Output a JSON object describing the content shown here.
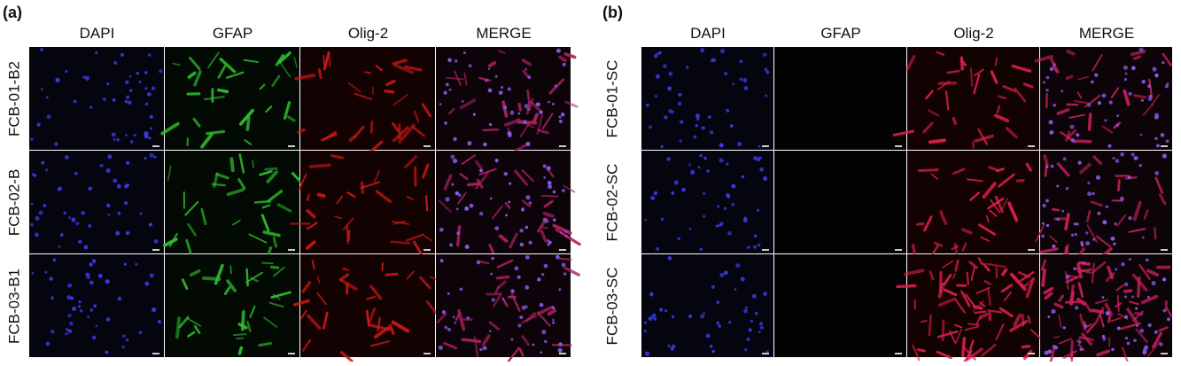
{
  "panels": [
    {
      "label": "(a)",
      "columns": [
        "DAPI",
        "GFAP",
        "Olig-2",
        "MERGE"
      ],
      "rows": [
        "FCB-01-B2",
        "FCB-02-B",
        "FCB-03-B1"
      ]
    },
    {
      "label": "(b)",
      "columns": [
        "DAPI",
        "GFAP",
        "Olig-2",
        "MERGE"
      ],
      "rows": [
        "FCB-01-SC",
        "FCB-02-SC",
        "FCB-03-SC"
      ]
    }
  ]
}
